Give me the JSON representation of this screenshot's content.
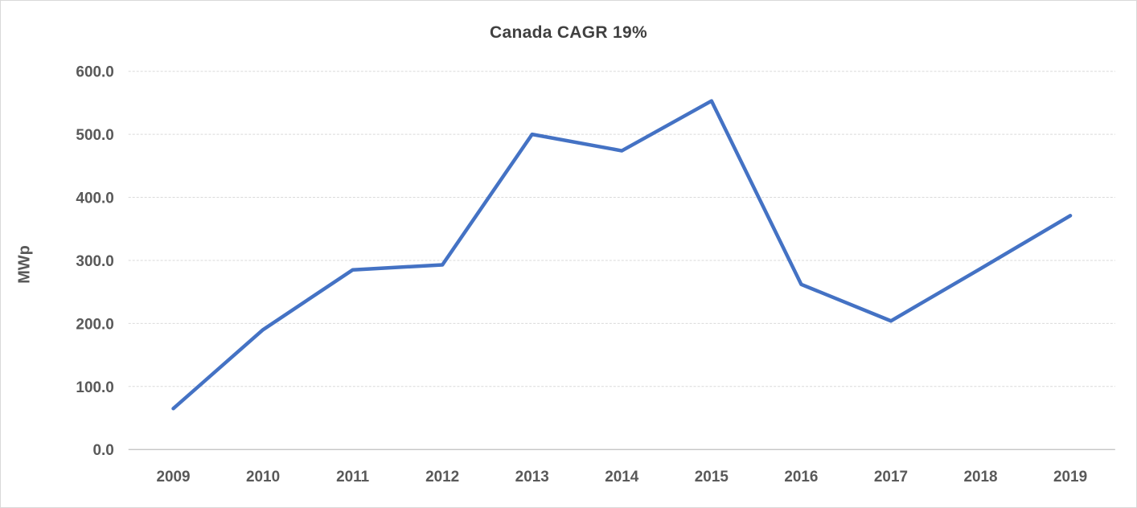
{
  "chart_data": {
    "type": "line",
    "title": "Canada CAGR 19%",
    "ylabel": "MWp",
    "xlabel": "",
    "categories": [
      "2009",
      "2010",
      "2011",
      "2012",
      "2013",
      "2014",
      "2015",
      "2016",
      "2017",
      "2018",
      "2019"
    ],
    "values": [
      65,
      190,
      285,
      293,
      500,
      474,
      553,
      262,
      204,
      287,
      371
    ],
    "ylim": [
      0,
      600
    ],
    "ytick_step": 100,
    "ytick_labels": [
      "0.0",
      "100.0",
      "200.0",
      "300.0",
      "400.0",
      "500.0",
      "600.0"
    ],
    "grid": true,
    "legend": false,
    "colors": {
      "line": "#4472C4",
      "gridline": "#DADADA",
      "axis_line": "#BFBFBF",
      "tick_label": "#595959",
      "title": "#404040",
      "background": "#FFFFFF",
      "border": "#D9D9D9"
    }
  }
}
